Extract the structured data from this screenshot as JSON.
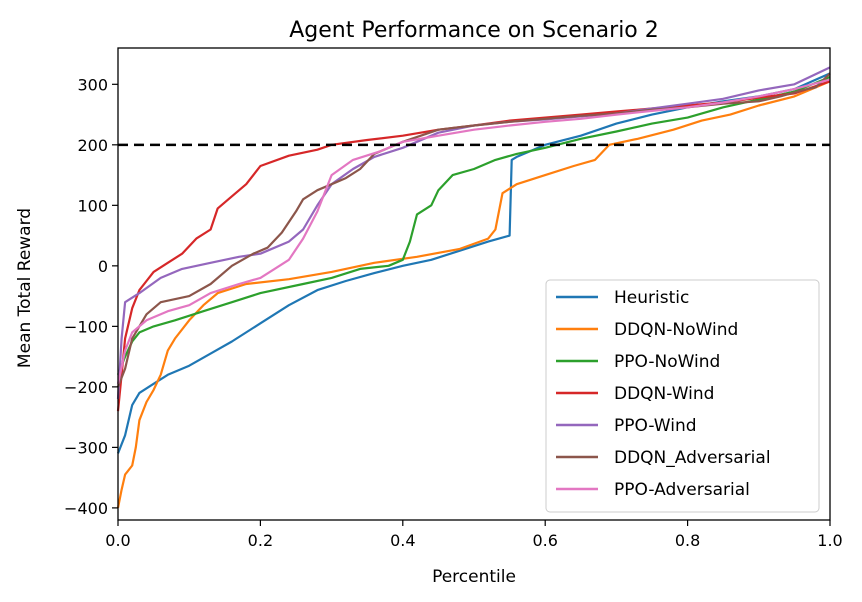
{
  "chart_data": {
    "type": "line",
    "title": "Agent Performance on Scenario 2",
    "xlabel": "Percentile",
    "ylabel": "Mean Total Reward",
    "xlim": [
      0.0,
      1.0
    ],
    "ylim": [
      -420,
      360
    ],
    "xticks": [
      0.0,
      0.2,
      0.4,
      0.6,
      0.8,
      1.0
    ],
    "xtick_labels": [
      "0.0",
      "0.2",
      "0.4",
      "0.6",
      "0.8",
      "1.0"
    ],
    "yticks": [
      -400,
      -300,
      -200,
      -100,
      0,
      100,
      200,
      300
    ],
    "ytick_labels": [
      "−400",
      "−300",
      "−200",
      "−100",
      "0",
      "100",
      "200",
      "300"
    ],
    "grid": false,
    "legend_position": "lower-right",
    "reference_line": {
      "y": 200,
      "style": "dashed",
      "color": "#000000"
    },
    "series": [
      {
        "name": "Heuristic",
        "color": "#1f77b4",
        "points": [
          [
            0,
            -310
          ],
          [
            0.01,
            -280
          ],
          [
            0.02,
            -230
          ],
          [
            0.03,
            -210
          ],
          [
            0.05,
            -195
          ],
          [
            0.07,
            -180
          ],
          [
            0.1,
            -165
          ],
          [
            0.13,
            -145
          ],
          [
            0.16,
            -125
          ],
          [
            0.2,
            -95
          ],
          [
            0.24,
            -65
          ],
          [
            0.28,
            -40
          ],
          [
            0.32,
            -25
          ],
          [
            0.36,
            -12
          ],
          [
            0.4,
            0
          ],
          [
            0.44,
            10
          ],
          [
            0.48,
            25
          ],
          [
            0.52,
            40
          ],
          [
            0.55,
            50
          ],
          [
            0.553,
            175
          ],
          [
            0.56,
            180
          ],
          [
            0.6,
            200
          ],
          [
            0.65,
            215
          ],
          [
            0.7,
            235
          ],
          [
            0.75,
            250
          ],
          [
            0.8,
            262
          ],
          [
            0.85,
            272
          ],
          [
            0.9,
            280
          ],
          [
            0.95,
            292
          ],
          [
            1.0,
            318
          ]
        ]
      },
      {
        "name": "DDQN-NoWind",
        "color": "#ff7f0e",
        "points": [
          [
            0,
            -400
          ],
          [
            0.005,
            -370
          ],
          [
            0.01,
            -345
          ],
          [
            0.02,
            -330
          ],
          [
            0.025,
            -300
          ],
          [
            0.03,
            -255
          ],
          [
            0.04,
            -225
          ],
          [
            0.05,
            -205
          ],
          [
            0.06,
            -180
          ],
          [
            0.07,
            -140
          ],
          [
            0.08,
            -120
          ],
          [
            0.1,
            -90
          ],
          [
            0.12,
            -65
          ],
          [
            0.14,
            -45
          ],
          [
            0.18,
            -30
          ],
          [
            0.24,
            -22
          ],
          [
            0.3,
            -10
          ],
          [
            0.36,
            5
          ],
          [
            0.42,
            15
          ],
          [
            0.48,
            28
          ],
          [
            0.52,
            45
          ],
          [
            0.53,
            60
          ],
          [
            0.54,
            120
          ],
          [
            0.56,
            135
          ],
          [
            0.6,
            150
          ],
          [
            0.64,
            165
          ],
          [
            0.67,
            175
          ],
          [
            0.69,
            200
          ],
          [
            0.73,
            210
          ],
          [
            0.78,
            225
          ],
          [
            0.82,
            240
          ],
          [
            0.86,
            250
          ],
          [
            0.9,
            265
          ],
          [
            0.95,
            280
          ],
          [
            1.0,
            305
          ]
        ]
      },
      {
        "name": "PPO-NoWind",
        "color": "#2ca02c",
        "points": [
          [
            0,
            -180
          ],
          [
            0.01,
            -150
          ],
          [
            0.02,
            -125
          ],
          [
            0.03,
            -110
          ],
          [
            0.05,
            -100
          ],
          [
            0.08,
            -90
          ],
          [
            0.12,
            -75
          ],
          [
            0.16,
            -60
          ],
          [
            0.2,
            -45
          ],
          [
            0.26,
            -30
          ],
          [
            0.3,
            -20
          ],
          [
            0.34,
            -5
          ],
          [
            0.38,
            0
          ],
          [
            0.4,
            10
          ],
          [
            0.41,
            40
          ],
          [
            0.42,
            85
          ],
          [
            0.44,
            100
          ],
          [
            0.45,
            125
          ],
          [
            0.47,
            150
          ],
          [
            0.5,
            160
          ],
          [
            0.53,
            175
          ],
          [
            0.56,
            185
          ],
          [
            0.6,
            195
          ],
          [
            0.65,
            210
          ],
          [
            0.7,
            222
          ],
          [
            0.75,
            235
          ],
          [
            0.8,
            245
          ],
          [
            0.85,
            262
          ],
          [
            0.9,
            275
          ],
          [
            0.95,
            288
          ],
          [
            1.0,
            312
          ]
        ]
      },
      {
        "name": "DDQN-Wind",
        "color": "#d62728",
        "points": [
          [
            0,
            -240
          ],
          [
            0.005,
            -180
          ],
          [
            0.01,
            -120
          ],
          [
            0.02,
            -70
          ],
          [
            0.03,
            -40
          ],
          [
            0.04,
            -25
          ],
          [
            0.05,
            -10
          ],
          [
            0.07,
            5
          ],
          [
            0.09,
            20
          ],
          [
            0.11,
            45
          ],
          [
            0.13,
            60
          ],
          [
            0.14,
            95
          ],
          [
            0.16,
            115
          ],
          [
            0.18,
            135
          ],
          [
            0.2,
            165
          ],
          [
            0.24,
            182
          ],
          [
            0.28,
            192
          ],
          [
            0.3,
            200
          ],
          [
            0.35,
            208
          ],
          [
            0.4,
            215
          ],
          [
            0.45,
            225
          ],
          [
            0.5,
            232
          ],
          [
            0.55,
            240
          ],
          [
            0.6,
            245
          ],
          [
            0.65,
            250
          ],
          [
            0.7,
            255
          ],
          [
            0.75,
            260
          ],
          [
            0.8,
            265
          ],
          [
            0.85,
            270
          ],
          [
            0.9,
            278
          ],
          [
            0.95,
            285
          ],
          [
            1.0,
            305
          ]
        ]
      },
      {
        "name": "PPO-Wind",
        "color": "#9467bd",
        "points": [
          [
            0,
            -220
          ],
          [
            0.005,
            -120
          ],
          [
            0.01,
            -60
          ],
          [
            0.03,
            -45
          ],
          [
            0.06,
            -20
          ],
          [
            0.09,
            -5
          ],
          [
            0.13,
            5
          ],
          [
            0.17,
            15
          ],
          [
            0.2,
            20
          ],
          [
            0.24,
            40
          ],
          [
            0.26,
            60
          ],
          [
            0.28,
            100
          ],
          [
            0.3,
            135
          ],
          [
            0.33,
            160
          ],
          [
            0.36,
            180
          ],
          [
            0.4,
            195
          ],
          [
            0.45,
            220
          ],
          [
            0.5,
            232
          ],
          [
            0.55,
            238
          ],
          [
            0.6,
            242
          ],
          [
            0.65,
            247
          ],
          [
            0.7,
            252
          ],
          [
            0.75,
            260
          ],
          [
            0.8,
            268
          ],
          [
            0.85,
            276
          ],
          [
            0.9,
            290
          ],
          [
            0.95,
            300
          ],
          [
            1.0,
            328
          ]
        ]
      },
      {
        "name": "DDQN_Adversarial",
        "color": "#8c564b",
        "points": [
          [
            0,
            -200
          ],
          [
            0.01,
            -170
          ],
          [
            0.02,
            -120
          ],
          [
            0.04,
            -80
          ],
          [
            0.06,
            -60
          ],
          [
            0.1,
            -50
          ],
          [
            0.13,
            -30
          ],
          [
            0.16,
            0
          ],
          [
            0.19,
            20
          ],
          [
            0.21,
            30
          ],
          [
            0.23,
            55
          ],
          [
            0.25,
            90
          ],
          [
            0.26,
            110
          ],
          [
            0.28,
            125
          ],
          [
            0.3,
            135
          ],
          [
            0.32,
            145
          ],
          [
            0.34,
            160
          ],
          [
            0.36,
            185
          ],
          [
            0.4,
            205
          ],
          [
            0.45,
            225
          ],
          [
            0.5,
            232
          ],
          [
            0.55,
            238
          ],
          [
            0.6,
            243
          ],
          [
            0.65,
            248
          ],
          [
            0.7,
            252
          ],
          [
            0.75,
            258
          ],
          [
            0.8,
            262
          ],
          [
            0.85,
            268
          ],
          [
            0.9,
            272
          ],
          [
            0.93,
            280
          ],
          [
            0.96,
            290
          ],
          [
            0.98,
            295
          ],
          [
            1.0,
            318
          ]
        ]
      },
      {
        "name": "PPO-Adversarial",
        "color": "#e377c2",
        "points": [
          [
            0,
            -195
          ],
          [
            0.01,
            -140
          ],
          [
            0.02,
            -110
          ],
          [
            0.04,
            -90
          ],
          [
            0.07,
            -75
          ],
          [
            0.1,
            -65
          ],
          [
            0.13,
            -45
          ],
          [
            0.17,
            -30
          ],
          [
            0.2,
            -20
          ],
          [
            0.22,
            -5
          ],
          [
            0.24,
            10
          ],
          [
            0.26,
            45
          ],
          [
            0.28,
            90
          ],
          [
            0.3,
            150
          ],
          [
            0.33,
            175
          ],
          [
            0.37,
            190
          ],
          [
            0.4,
            205
          ],
          [
            0.45,
            215
          ],
          [
            0.5,
            225
          ],
          [
            0.55,
            232
          ],
          [
            0.6,
            238
          ],
          [
            0.65,
            243
          ],
          [
            0.7,
            250
          ],
          [
            0.75,
            256
          ],
          [
            0.8,
            262
          ],
          [
            0.85,
            270
          ],
          [
            0.9,
            280
          ],
          [
            0.95,
            292
          ],
          [
            1.0,
            308
          ]
        ]
      }
    ]
  }
}
